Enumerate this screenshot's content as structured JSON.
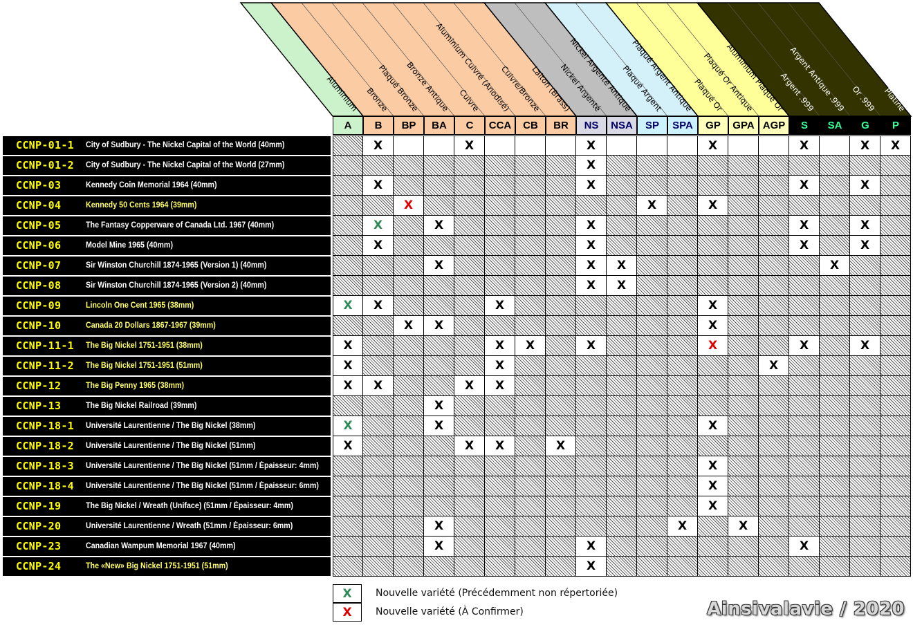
{
  "columns": [
    {
      "abbr": "A",
      "name": "Aluminium",
      "bg": "#ccf2cc",
      "fg": "#000000",
      "group": "alu"
    },
    {
      "abbr": "B",
      "name": "Bronze",
      "bg": "#fbcba3",
      "fg": "#000000",
      "group": "bronze"
    },
    {
      "abbr": "BP",
      "name": "Plaqué Bronze",
      "bg": "#fbcba3",
      "fg": "#000000",
      "group": "bronze"
    },
    {
      "abbr": "BA",
      "name": "Bronze Antique",
      "bg": "#fbcba3",
      "fg": "#000000",
      "group": "bronze"
    },
    {
      "abbr": "C",
      "name": "Cuivre",
      "bg": "#fbcba3",
      "fg": "#000000",
      "group": "bronze"
    },
    {
      "abbr": "CCA",
      "name": "Aluminium Cuivré (Anodisé)",
      "bg": "#fbcba3",
      "fg": "#000000",
      "group": "bronze"
    },
    {
      "abbr": "CB",
      "name": "Cuivre/Bronze",
      "bg": "#fbcba3",
      "fg": "#000000",
      "group": "bronze"
    },
    {
      "abbr": "BR",
      "name": "Laiton (Brass)",
      "bg": "#fbcba3",
      "fg": "#000000",
      "group": "bronze"
    },
    {
      "abbr": "NS",
      "name": "Nickel Argenté",
      "bg": "#bebebe",
      "fg": "#000000",
      "group": "nickel"
    },
    {
      "abbr": "NSA",
      "name": "Nickel Argenté Antique",
      "bg": "#bebebe",
      "fg": "#000000",
      "group": "nickel"
    },
    {
      "abbr": "SP",
      "name": "Plaqué Argent",
      "bg": "#d4f1f9",
      "fg": "#000000",
      "group": "silverplate"
    },
    {
      "abbr": "SPA",
      "name": "Plaqué Argent Antique",
      "bg": "#d4f1f9",
      "fg": "#000000",
      "group": "silverplate"
    },
    {
      "abbr": "GP",
      "name": "Plaqué Or",
      "bg": "#ffff99",
      "fg": "#000000",
      "group": "gold"
    },
    {
      "abbr": "GPA",
      "name": "Plaqué Or Antique",
      "bg": "#ffff99",
      "fg": "#000000",
      "group": "gold"
    },
    {
      "abbr": "AGP",
      "name": "Aluminium Plaqué Or",
      "bg": "#ffff99",
      "fg": "#000000",
      "group": "gold"
    },
    {
      "abbr": "S",
      "name": "Argent .999",
      "bg": "#333300",
      "fg": "#33ff99",
      "group": "precious"
    },
    {
      "abbr": "SA",
      "name": "Argent Antique .999",
      "bg": "#333300",
      "fg": "#33ff99",
      "group": "precious"
    },
    {
      "abbr": "G",
      "name": "Or .999",
      "bg": "#333300",
      "fg": "#33ff99",
      "group": "precious"
    },
    {
      "abbr": "P",
      "name": "Platine",
      "bg": "#333300",
      "fg": "#33ff99",
      "group": "precious"
    }
  ],
  "column_header_bg_abbr": {
    "alu": "#ccf2cc",
    "bronze": "#fbcba3",
    "nickel": "#d9d9e6",
    "silverplate": "#ccf2ff",
    "gold": "#ffffbb",
    "precious": "#000000"
  },
  "rows": [
    {
      "code": "CCNP-01-1",
      "title": "City of Sudbury - The Nickel Capital of the World (40mm)",
      "title_color": "white",
      "cells": "HXBBXBBBXBBBXBBXBXX"
    },
    {
      "code": "CCNP-01-2",
      "title": "City of Sudbury - The Nickel Capital of the World (27mm)",
      "title_color": "white",
      "cells": "HHHHHHHHXHHHHHHHHHH"
    },
    {
      "code": "CCNP-03",
      "title": "Kennedy Coin Memorial 1964 (40mm)",
      "title_color": "white",
      "cells": "HXHHHHHHXHHHHHHXHXH"
    },
    {
      "code": "CCNP-04",
      "title": "Kennedy 50 Cents 1964 (39mm)",
      "title_color": "yellow",
      "cells": "HHRHHHHHHHXHXHHHHHH"
    },
    {
      "code": "CCNP-05",
      "title": "The Fantasy Copperware of Canada Ltd. 1967 (40mm)",
      "title_color": "white",
      "cells": "HGHXHHHHXHHHHHHXHXH"
    },
    {
      "code": "CCNP-06",
      "title": "Model Mine 1965 (40mm)",
      "title_color": "white",
      "cells": "HXHHHHHHXHHHHHHXHXH"
    },
    {
      "code": "CCNP-07",
      "title": "Sir Winston Churchill 1874-1965 (Version 1) (40mm)",
      "title_color": "white",
      "cells": "HHHXHHHHXXHHHHHHXHH"
    },
    {
      "code": "CCNP-08",
      "title": "Sir Winston Churchill 1874-1965 (Version 2) (40mm)",
      "title_color": "white",
      "cells": "HHHHHHHHXXHHHHHHHHH"
    },
    {
      "code": "CCNP-09",
      "title": "Lincoln One Cent 1965 (38mm)",
      "title_color": "yellow",
      "cells": "GXHHHXHHHHHHXHHHHHH"
    },
    {
      "code": "CCNP-10",
      "title": "Canada 20 Dollars 1867-1967 (39mm)",
      "title_color": "yellow",
      "cells": "HHXXHHHHHHHHXHHHHHH"
    },
    {
      "code": "CCNP-11-1",
      "title": "The Big Nickel 1751-1951 (38mm)",
      "title_color": "yellow",
      "cells": "XHHHHXXHXHHHRHHXHXH"
    },
    {
      "code": "CCNP-11-2",
      "title": "The Big Nickel 1751-1951 (51mm)",
      "title_color": "yellow",
      "cells": "XHHHHXHHHHHHHHXHHHH"
    },
    {
      "code": "CCNP-12",
      "title": "The Big Penny 1965 (38mm)",
      "title_color": "yellow",
      "cells": "XXHHXXHHHHHHHHHHHHH"
    },
    {
      "code": "CCNP-13",
      "title": "The Big Nickel Railroad (39mm)",
      "title_color": "white",
      "cells": "HHHXHHHHHHHHHHHHHHH"
    },
    {
      "code": "CCNP-18-1",
      "title": "Université Laurentienne / The Big Nickel (38mm)",
      "title_color": "white",
      "cells": "GHHXHHHHHHHHXHHHHHH"
    },
    {
      "code": "CCNP-18-2",
      "title": "Université Laurentienne / The Big Nickel (51mm)",
      "title_color": "white",
      "cells": "XHHHXXHXHHHHHHHHHHH"
    },
    {
      "code": "CCNP-18-3",
      "title": "Université Laurentienne / The Big Nickel (51mm / Épaisseur: 4mm)",
      "title_color": "white",
      "cells": "HHHHHHHHHHHHXHHHHHH"
    },
    {
      "code": "CCNP-18-4",
      "title": "Université Laurentienne / The Big Nickel (51mm / Épaisseur: 6mm)",
      "title_color": "white",
      "cells": "HHHHHHHHHHHHXHHHHHH"
    },
    {
      "code": "CCNP-19",
      "title": "The Big Nickel / Wreath (Uniface) (51mm / Épaisseur: 4mm)",
      "title_color": "white",
      "cells": "HHHHHHHHHHHHXHHHHHH"
    },
    {
      "code": "CCNP-20",
      "title": "Université Laurentienne / Wreath (51mm / Épaisseur: 6mm)",
      "title_color": "white",
      "cells": "HHHXHHHHHHHXHXHHHHH"
    },
    {
      "code": "CCNP-23",
      "title": "Canadian Wampum Memorial 1967 (40mm)",
      "title_color": "white",
      "cells": "HHHXHHHHXHHHHHHXHHH"
    },
    {
      "code": "CCNP-24",
      "title": "The «New» Big Nickel 1751-1951 (51mm)",
      "title_color": "yellow",
      "cells": "HHHHHHHHXHHHHHHHHHH"
    }
  ],
  "mark_char": "X",
  "legend": [
    {
      "mark": "X",
      "color": "#2e8b57",
      "text": "Nouvelle variété (Précédemment non répertoriée)"
    },
    {
      "mark": "X",
      "color": "#e00000",
      "text": "Nouvelle variété (À Confirmer)"
    }
  ],
  "credit": "Ainsivalavie / 2020"
}
